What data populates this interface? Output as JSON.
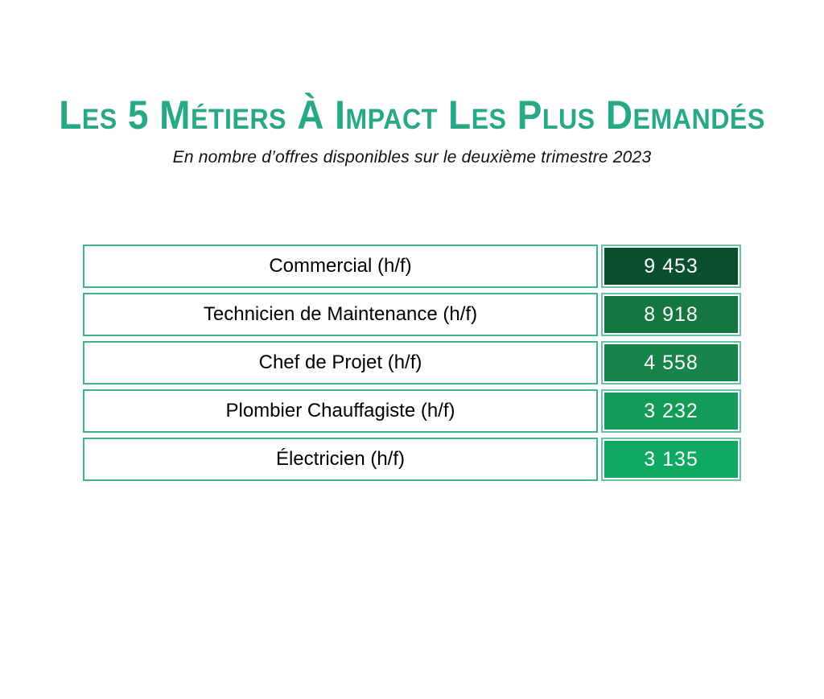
{
  "page": {
    "title": "Les 5 Métiers À Impact Les Plus Demandés",
    "subtitle": "En nombre d’offres disponibles sur le deuxième trimestre 2023"
  },
  "colors": {
    "title_green": "#27a886",
    "label_cell_border": "#3cb28e",
    "value_cell_border": "#68c3a3",
    "value_text": "#ffffff",
    "row_fills": [
      "#0b4f2e",
      "#15763f",
      "#17854a",
      "#139b58",
      "#0fa961"
    ]
  },
  "table": {
    "rows": [
      {
        "label": "Commercial (h/f)",
        "value": "9 453",
        "fill": "#0b4f2e"
      },
      {
        "label": "Technicien de Maintenance (h/f)",
        "value": "8 918",
        "fill": "#15763f"
      },
      {
        "label": "Chef de Projet (h/f)",
        "value": "4 558",
        "fill": "#17854a"
      },
      {
        "label": "Plombier Chauffagiste (h/f)",
        "value": "3 232",
        "fill": "#139b58"
      },
      {
        "label": "Électricien (h/f)",
        "value": "3 135",
        "fill": "#0fa961"
      }
    ]
  },
  "chart_data": {
    "type": "table",
    "title": "Les 5 Métiers À Impact Les Plus Demandés",
    "subtitle": "En nombre d’offres disponibles sur le deuxième trimestre 2023",
    "categories": [
      "Commercial (h/f)",
      "Technicien de Maintenance (h/f)",
      "Chef de Projet (h/f)",
      "Plombier Chauffagiste (h/f)",
      "Électricien (h/f)"
    ],
    "values": [
      9453,
      8918,
      4558,
      3232,
      3135
    ],
    "value_labels": [
      "9 453",
      "8 918",
      "4 558",
      "3 232",
      "3 135"
    ]
  }
}
